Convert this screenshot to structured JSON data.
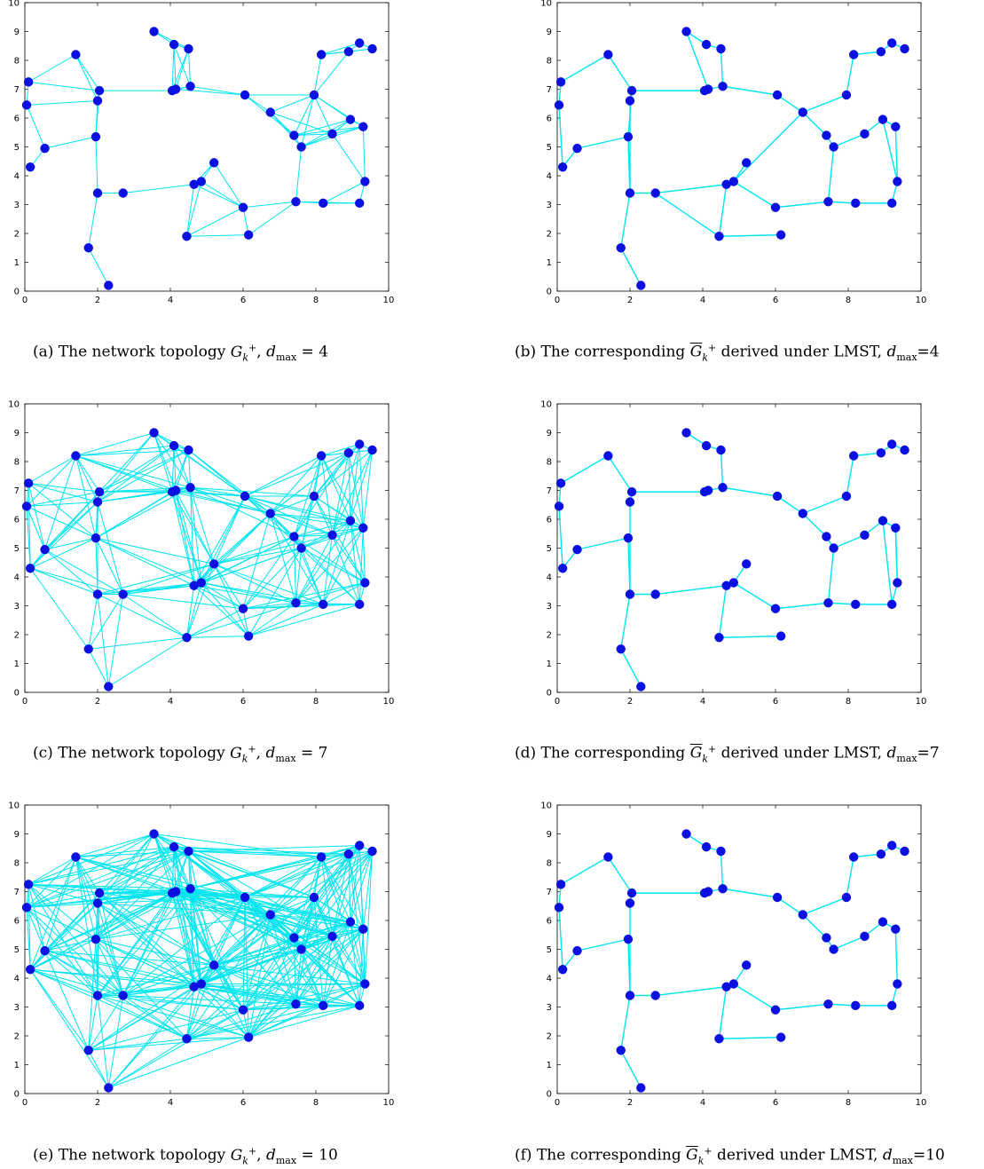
{
  "nodes": {
    "x": [
      2.3,
      1.75,
      4.45,
      6.15,
      2.0,
      2.7,
      4.65,
      4.85,
      5.2,
      6.0,
      7.45,
      8.2,
      9.2,
      9.35,
      0.15,
      0.55,
      1.95,
      0.05,
      0.1,
      1.4,
      2.0,
      2.05,
      4.05,
      4.15,
      4.55,
      3.55,
      4.1,
      4.5,
      6.05,
      6.75,
      7.4,
      7.6,
      7.95,
      8.15,
      8.45,
      8.9,
      8.95,
      9.2,
      9.3,
      9.55
    ],
    "y": [
      0.2,
      1.5,
      1.9,
      1.95,
      3.4,
      3.4,
      3.7,
      3.8,
      4.45,
      2.9,
      3.1,
      3.05,
      3.05,
      3.8,
      4.3,
      4.95,
      5.35,
      6.45,
      7.25,
      8.2,
      6.6,
      6.95,
      6.95,
      7.0,
      7.1,
      9.0,
      8.55,
      8.4,
      6.8,
      6.2,
      5.4,
      5.0,
      6.8,
      8.2,
      5.45,
      8.3,
      5.95,
      8.6,
      5.7,
      8.4
    ]
  },
  "chart_data": [
    {
      "type": "scatter",
      "panel": "a",
      "xlim": [
        0,
        10
      ],
      "ylim": [
        0,
        10
      ],
      "xticks": [
        "0",
        "2",
        "4",
        "6",
        "8",
        "10"
      ],
      "yticks": [
        "0",
        "1",
        "2",
        "3",
        "4",
        "5",
        "6",
        "7",
        "8",
        "9",
        "10"
      ],
      "marker_color": "#0a10e0",
      "edge_color": "#00e5ee",
      "dmax": 4
    },
    {
      "type": "scatter",
      "panel": "b",
      "xlim": [
        0,
        10
      ],
      "ylim": [
        0,
        10
      ],
      "xticks": [
        "0",
        "2",
        "4",
        "6",
        "8",
        "10"
      ],
      "yticks": [
        "0",
        "1",
        "2",
        "3",
        "4",
        "5",
        "6",
        "7",
        "8",
        "9",
        "10"
      ],
      "marker_color": "#0a10e0",
      "edge_color": "#00e5ee",
      "dmax": 4
    },
    {
      "type": "scatter",
      "panel": "c",
      "xlim": [
        0,
        10
      ],
      "ylim": [
        0,
        10
      ],
      "xticks": [
        "0",
        "2",
        "4",
        "6",
        "8",
        "10"
      ],
      "yticks": [
        "0",
        "1",
        "2",
        "3",
        "4",
        "5",
        "6",
        "7",
        "8",
        "9",
        "10"
      ],
      "marker_color": "#0a10e0",
      "edge_color": "#00e5ee",
      "dmax": 7
    },
    {
      "type": "scatter",
      "panel": "d",
      "xlim": [
        0,
        10
      ],
      "ylim": [
        0,
        10
      ],
      "xticks": [
        "0",
        "2",
        "4",
        "6",
        "8",
        "10"
      ],
      "yticks": [
        "0",
        "1",
        "2",
        "3",
        "4",
        "5",
        "6",
        "7",
        "8",
        "9",
        "10"
      ],
      "marker_color": "#0a10e0",
      "edge_color": "#00e5ee",
      "dmax": 7
    },
    {
      "type": "scatter",
      "panel": "e",
      "xlim": [
        0,
        10
      ],
      "ylim": [
        0,
        10
      ],
      "xticks": [
        "0",
        "2",
        "4",
        "6",
        "8",
        "10"
      ],
      "yticks": [
        "0",
        "1",
        "2",
        "3",
        "4",
        "5",
        "6",
        "7",
        "8",
        "9",
        "10"
      ],
      "marker_color": "#0a10e0",
      "edge_color": "#00e5ee",
      "dmax": 10
    },
    {
      "type": "scatter",
      "panel": "f",
      "xlim": [
        0,
        10
      ],
      "ylim": [
        0,
        10
      ],
      "xticks": [
        "0",
        "2",
        "4",
        "6",
        "8",
        "10"
      ],
      "yticks": [
        "0",
        "1",
        "2",
        "3",
        "4",
        "5",
        "6",
        "7",
        "8",
        "9",
        "10"
      ],
      "marker_color": "#0a10e0",
      "edge_color": "#00e5ee",
      "dmax": 10
    }
  ],
  "mst_edges": [
    [
      0,
      1
    ],
    [
      1,
      4
    ],
    [
      4,
      16
    ],
    [
      4,
      5
    ],
    [
      4,
      20
    ],
    [
      5,
      6
    ],
    [
      6,
      7
    ],
    [
      7,
      8
    ],
    [
      6,
      2
    ],
    [
      2,
      3
    ],
    [
      7,
      9
    ],
    [
      9,
      10
    ],
    [
      10,
      11
    ],
    [
      11,
      12
    ],
    [
      12,
      13
    ],
    [
      13,
      38
    ],
    [
      38,
      36
    ],
    [
      36,
      34
    ],
    [
      34,
      31
    ],
    [
      31,
      30
    ],
    [
      30,
      29
    ],
    [
      29,
      28
    ],
    [
      28,
      24
    ],
    [
      24,
      23
    ],
    [
      23,
      22
    ],
    [
      22,
      21
    ],
    [
      21,
      20
    ],
    [
      21,
      19
    ],
    [
      19,
      18
    ],
    [
      18,
      17
    ],
    [
      17,
      14
    ],
    [
      16,
      15
    ],
    [
      15,
      14
    ],
    [
      24,
      27
    ],
    [
      27,
      26
    ],
    [
      26,
      25
    ],
    [
      29,
      32
    ],
    [
      32,
      33
    ],
    [
      33,
      35
    ],
    [
      35,
      37
    ],
    [
      37,
      39
    ],
    [
      31,
      10
    ]
  ],
  "extra_edges_b": [
    [
      25,
      23
    ],
    [
      16,
      21
    ],
    [
      4,
      16
    ],
    [
      5,
      2
    ],
    [
      13,
      36
    ],
    [
      29,
      7
    ]
  ],
  "extra_edges_d": [
    [
      38,
      13
    ],
    [
      12,
      36
    ]
  ],
  "captions": {
    "a": {
      "label": "(a) The network topology ",
      "g": "G",
      "sub": "k",
      "sup": "+",
      "mid": ", ",
      "d": "d",
      "dsub": "max",
      "eq": " = 4"
    },
    "b": {
      "label": "(b) The corresponding ",
      "g": "G",
      "sub": "k",
      "sup": "+",
      "mid": " derived under LMST, ",
      "d": "d",
      "dsub": "max",
      "eq": "=4"
    },
    "c": {
      "label": "(c) The network topology ",
      "g": "G",
      "sub": "k",
      "sup": "+",
      "mid": ", ",
      "d": "d",
      "dsub": "max",
      "eq": " = 7"
    },
    "d": {
      "label": "(d) The corresponding ",
      "g": "G",
      "sub": "k",
      "sup": "+",
      "mid": " derived under LMST, ",
      "d": "d",
      "dsub": "max",
      "eq": "=7"
    },
    "e": {
      "label": "(e) The network topology ",
      "g": "G",
      "sub": "k",
      "sup": "+",
      "mid": ", ",
      "d": "d",
      "dsub": "max",
      "eq": " = 10"
    },
    "f": {
      "label": "(f) The corresponding ",
      "g": "G",
      "sub": "k",
      "sup": "+",
      "mid": " derived under LMST, ",
      "d": "d",
      "dsub": "max",
      "eq": "=10"
    }
  }
}
